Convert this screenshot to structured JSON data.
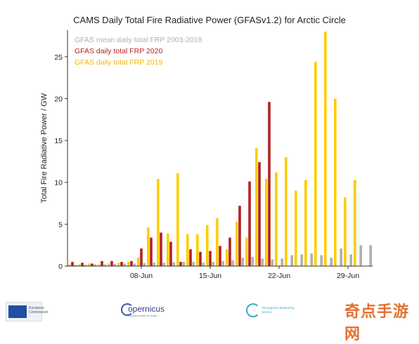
{
  "chart_data": {
    "type": "bar",
    "title": "CAMS Daily Total Fire Radiative Power (GFASv1.2) for Arctic Circle",
    "ylabel": "Total Fire Radiative Power / GW",
    "xlabel": "",
    "ylim": [
      0,
      28
    ],
    "yticks": [
      0,
      5,
      10,
      15,
      20,
      25
    ],
    "x_tick_labels": [
      {
        "day_index": 7,
        "label": "08-Jun"
      },
      {
        "day_index": 14,
        "label": "15-Jun"
      },
      {
        "day_index": 21,
        "label": "22-Jun"
      },
      {
        "day_index": 28,
        "label": "29-Jun"
      }
    ],
    "legend_position": "top-left",
    "grid": false,
    "series": [
      {
        "name": "GFAS mean daily total FRP 2003-2018",
        "color": "#b0b0b0",
        "values": [
          0.15,
          0.15,
          0.2,
          0.2,
          0.25,
          0.3,
          0.3,
          0.35,
          0.4,
          0.4,
          0.45,
          0.5,
          0.5,
          0.4,
          0.5,
          0.6,
          0.7,
          1.0,
          1.1,
          0.9,
          0.8,
          0.9,
          1.3,
          1.4,
          1.5,
          1.3,
          1.0,
          2.1,
          1.4,
          2.5,
          2.5
        ]
      },
      {
        "name": "GFAS daily total FRP 2020",
        "color": "#b22222",
        "values": [
          0.5,
          0.4,
          0.3,
          0.6,
          0.6,
          0.5,
          0.6,
          2.1,
          3.4,
          4.0,
          2.9,
          0.5,
          2.0,
          1.7,
          1.8,
          2.4,
          3.4,
          7.2,
          10.1,
          12.4,
          19.6,
          null,
          null,
          null,
          null,
          null,
          null,
          null,
          null,
          null,
          null
        ]
      },
      {
        "name": "GFAS daily total FRP 2019",
        "color": "#ffcc00",
        "values": [
          0.2,
          0.2,
          0.3,
          0.2,
          0.3,
          0.4,
          0.5,
          1.0,
          4.6,
          10.4,
          3.9,
          11.1,
          3.8,
          3.8,
          4.9,
          5.7,
          2.0,
          5.3,
          3.4,
          14.1,
          10.4,
          11.2,
          13.0,
          9.0,
          10.3,
          24.4,
          28.0,
          20.0,
          8.2,
          10.3,
          null
        ]
      }
    ]
  },
  "footer": {
    "eu_text": "European Commission",
    "copernicus_text": "opernicus",
    "copernicus_sub": "Europe's eyes on Earth",
    "ams_text": "Atmosphere Monitoring Service",
    "watermark": "奇点手游网"
  },
  "colors": {
    "axis": "#333333",
    "title": "#222222"
  }
}
